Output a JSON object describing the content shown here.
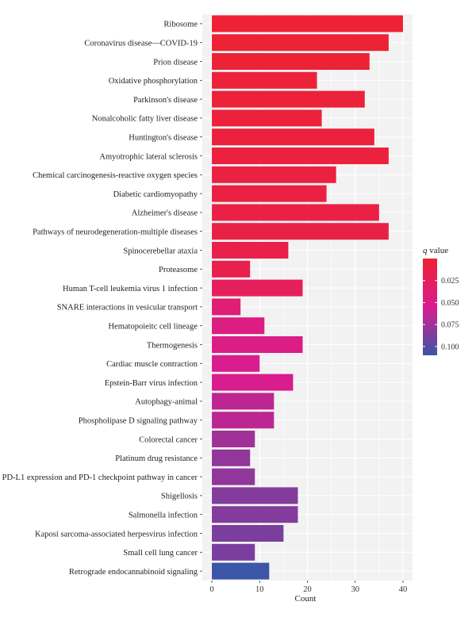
{
  "chart_data": {
    "type": "bar",
    "orientation": "horizontal",
    "categories": [
      "Ribosome",
      "Coronavirus disease—COVID-19",
      "Prion disease",
      "Oxidative phosphorylation",
      "Parkinson's disease",
      "Nonalcoholic fatty liver disease",
      "Huntington's disease",
      "Amyotrophic lateral sclerosis",
      "Chemical carcinogenesis-reactive oxygen species",
      "Diabetic cardiomyopathy",
      "Alzheimer's disease",
      "Pathways of neurodegeneration-multiple diseases",
      "Spinocerebellar ataxia",
      "Proteasome",
      "Human T-cell leukemia virus 1 infection",
      "SNARE interactions in vesicular transport",
      "Hematopoieitc cell lineage",
      "Thermogenesis",
      "Cardiac muscle contraction",
      "Epstein-Barr virus infection",
      "Autophagy-animal",
      "Phospholipase D signaling pathway",
      "Colorectal cancer",
      "Platinum drug resistance",
      "PD-L1 expression and PD-1 checkpoint pathway in cancer",
      "Shigellosis",
      "Salmonella infection",
      "Kaposi sarcoma-associated herpesvirus infection",
      "Small cell lung cancer",
      "Retrograde endocannabinoid signaling"
    ],
    "values": [
      40,
      37,
      33,
      22,
      32,
      23,
      34,
      37,
      26,
      24,
      35,
      37,
      16,
      8,
      19,
      6,
      11,
      19,
      10,
      17,
      13,
      13,
      9,
      8,
      9,
      18,
      18,
      15,
      9,
      12
    ],
    "qvalues": [
      0.001,
      0.002,
      0.003,
      0.004,
      0.005,
      0.006,
      0.007,
      0.008,
      0.009,
      0.01,
      0.011,
      0.012,
      0.014,
      0.016,
      0.025,
      0.04,
      0.048,
      0.05,
      0.055,
      0.055,
      0.065,
      0.065,
      0.075,
      0.08,
      0.08,
      0.085,
      0.085,
      0.088,
      0.088,
      0.11
    ],
    "xlabel": "Count",
    "xticks": [
      0,
      10,
      20,
      30,
      40
    ],
    "xlim": [
      -2,
      42
    ],
    "grid": true,
    "legend": {
      "title_italic": "q",
      "title_rest": " value",
      "position": "right",
      "ticks": [
        "0.025",
        "0.050",
        "0.075",
        "0.100"
      ],
      "tick_values": [
        0.025,
        0.05,
        0.075,
        0.1
      ],
      "range": [
        0.0,
        0.11
      ],
      "color_low": "#ee2232",
      "color_mid": "#d91c8e",
      "color_high": "#3b55a8"
    }
  }
}
